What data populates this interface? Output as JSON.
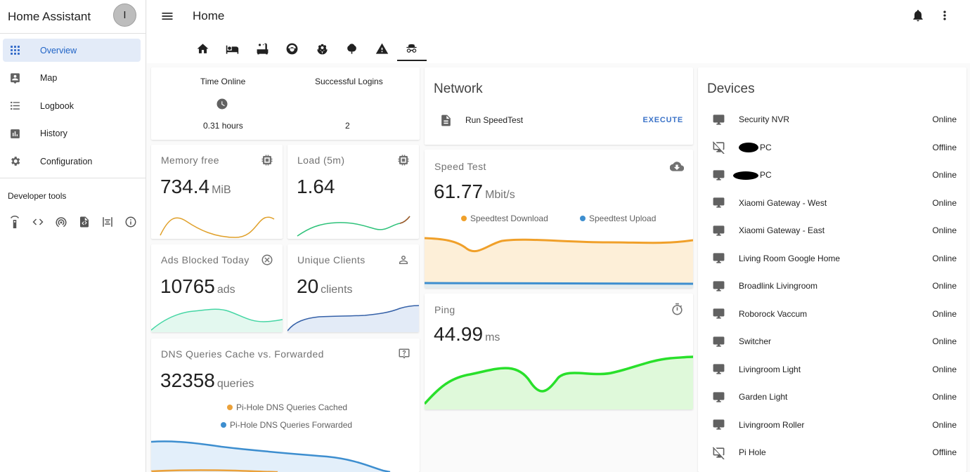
{
  "app_title": "Home Assistant",
  "user_initial": "I",
  "sidebar": {
    "items": [
      {
        "label": "Overview",
        "icon": "grid-icon"
      },
      {
        "label": "Map",
        "icon": "map-icon"
      },
      {
        "label": "Logbook",
        "icon": "list-icon"
      },
      {
        "label": "History",
        "icon": "chart-icon"
      },
      {
        "label": "Configuration",
        "icon": "gear-icon"
      }
    ],
    "dev_title": "Developer tools",
    "dev_icons": [
      "remote-icon",
      "code-icon",
      "broadcast-icon",
      "file-code-icon",
      "template-icon",
      "info-icon"
    ]
  },
  "header": {
    "title": "Home",
    "tabs": [
      "home-icon",
      "bed-icon",
      "bathtub-icon",
      "robot-icon",
      "flower-icon",
      "tree-icon",
      "alert-icon",
      "incognito-icon"
    ]
  },
  "glance": {
    "time_online_label": "Time Online",
    "time_online_value": "0.31 hours",
    "logins_label": "Successful Logins",
    "logins_value": "2"
  },
  "sensors": {
    "memory": {
      "name": "Memory free",
      "value": "734.4",
      "unit": "MiB",
      "color": "#e0a12c"
    },
    "load": {
      "name": "Load (5m)",
      "value": "1.64",
      "unit": "",
      "color": "#2ec27a"
    },
    "ads": {
      "name": "Ads Blocked Today",
      "value": "10765",
      "unit": "ads",
      "color": "#45d6a4"
    },
    "clients": {
      "name": "Unique Clients",
      "value": "20",
      "unit": "clients",
      "color": "#3561a8"
    },
    "dns": {
      "name": "DNS Queries Cache vs. Forwarded",
      "value": "32358",
      "unit": "queries",
      "legend_cached": "Pi-Hole DNS Queries Cached",
      "legend_forwarded": "Pi-Hole DNS Queries Forwarded",
      "color_cached": "#eba13a",
      "color_forwarded": "#3d8ecf"
    },
    "speed": {
      "name": "Speed Test",
      "value": "61.77",
      "unit": "Mbit/s",
      "legend_download": "Speedtest Download",
      "legend_upload": "Speedtest Upload",
      "color_download": "#f0a02a",
      "color_upload": "#3d8ecf"
    },
    "ping": {
      "name": "Ping",
      "value": "44.99",
      "unit": "ms",
      "color": "#29e02b"
    }
  },
  "network": {
    "title": "Network",
    "script_name": "Run SpeedTest",
    "action": "EXECUTE"
  },
  "devices": {
    "title": "Devices",
    "items": [
      {
        "name": "Security NVR",
        "state": "Online",
        "icon": "desktop-icon"
      },
      {
        "name": "PC",
        "state": "Offline",
        "icon": "desktop-off-icon"
      },
      {
        "name": "PC",
        "state": "Online",
        "icon": "desktop-icon"
      },
      {
        "name": "Xiaomi Gateway - West",
        "state": "Online",
        "icon": "desktop-icon"
      },
      {
        "name": "Xiaomi Gateway - East",
        "state": "Online",
        "icon": "desktop-icon"
      },
      {
        "name": "Living Room Google Home",
        "state": "Online",
        "icon": "desktop-icon"
      },
      {
        "name": "Broadlink Livingroom",
        "state": "Online",
        "icon": "desktop-icon"
      },
      {
        "name": "Roborock Vaccum",
        "state": "Online",
        "icon": "desktop-icon"
      },
      {
        "name": "Switcher",
        "state": "Online",
        "icon": "desktop-icon"
      },
      {
        "name": "Livingroom Light",
        "state": "Online",
        "icon": "desktop-icon"
      },
      {
        "name": "Garden Light",
        "state": "Online",
        "icon": "desktop-icon"
      },
      {
        "name": "Livingroom Roller",
        "state": "Online",
        "icon": "desktop-icon"
      },
      {
        "name": "Pi Hole",
        "state": "Offline",
        "icon": "desktop-off-icon"
      }
    ]
  }
}
